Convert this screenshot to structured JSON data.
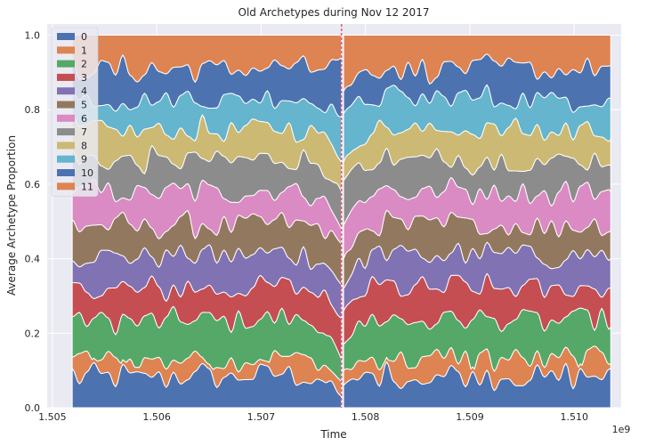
{
  "chart_data": {
    "type": "area",
    "stacked": true,
    "normalized": true,
    "title": "Old Archetypes during Nov 12 2017",
    "xlabel": "Time",
    "ylabel": "Average Archetype Proportion",
    "x_offset_label": "1e9",
    "xlim": [
      1.50495,
      1.51045
    ],
    "ylim": [
      0.0,
      1.03
    ],
    "xticks": [
      1.505,
      1.506,
      1.507,
      1.508,
      1.509,
      1.51
    ],
    "xtick_labels": [
      "1.505",
      "1.506",
      "1.507",
      "1.508",
      "1.509",
      "1.510"
    ],
    "yticks": [
      0.0,
      0.2,
      0.4,
      0.6,
      0.8,
      1.0
    ],
    "ytick_labels": [
      "0.0",
      "0.2",
      "0.4",
      "0.6",
      "0.8",
      "1.0"
    ],
    "x_start": 1.50519,
    "x_end": 1.51035,
    "gap_range": [
      1.507765,
      1.50779
    ],
    "vline_x": 1.50777,
    "vline_color": "#e06080",
    "grid": true,
    "legend_position": "top-left",
    "series_names": [
      "0",
      "1",
      "2",
      "3",
      "4",
      "5",
      "6",
      "7",
      "8",
      "9",
      "10",
      "11"
    ],
    "colors": [
      "#4c72b0",
      "#dd8452",
      "#55a868",
      "#c44e52",
      "#8172b3",
      "#937860",
      "#da8bc3",
      "#8c8c8c",
      "#ccb974",
      "#64b5cd",
      "#4c72b0",
      "#dd8452"
    ],
    "mean_boundaries": [
      0.085,
      0.13,
      0.235,
      0.32,
      0.41,
      0.49,
      0.58,
      0.665,
      0.745,
      0.83,
      0.91,
      1.0
    ],
    "segments": {
      "before_event": {
        "x_range": [
          1.50519,
          1.50777
        ],
        "boundaries_at_end": [
          0.03,
          0.07,
          0.13,
          0.24,
          0.33,
          0.44,
          0.48,
          0.58,
          0.66,
          0.78,
          0.94,
          1.0
        ]
      },
      "after_event": {
        "x_range": [
          1.50779,
          1.51035
        ],
        "boundaries_at_start": [
          0.06,
          0.1,
          0.17,
          0.26,
          0.32,
          0.4,
          0.49,
          0.61,
          0.66,
          0.79,
          0.85,
          1.0
        ]
      }
    }
  }
}
